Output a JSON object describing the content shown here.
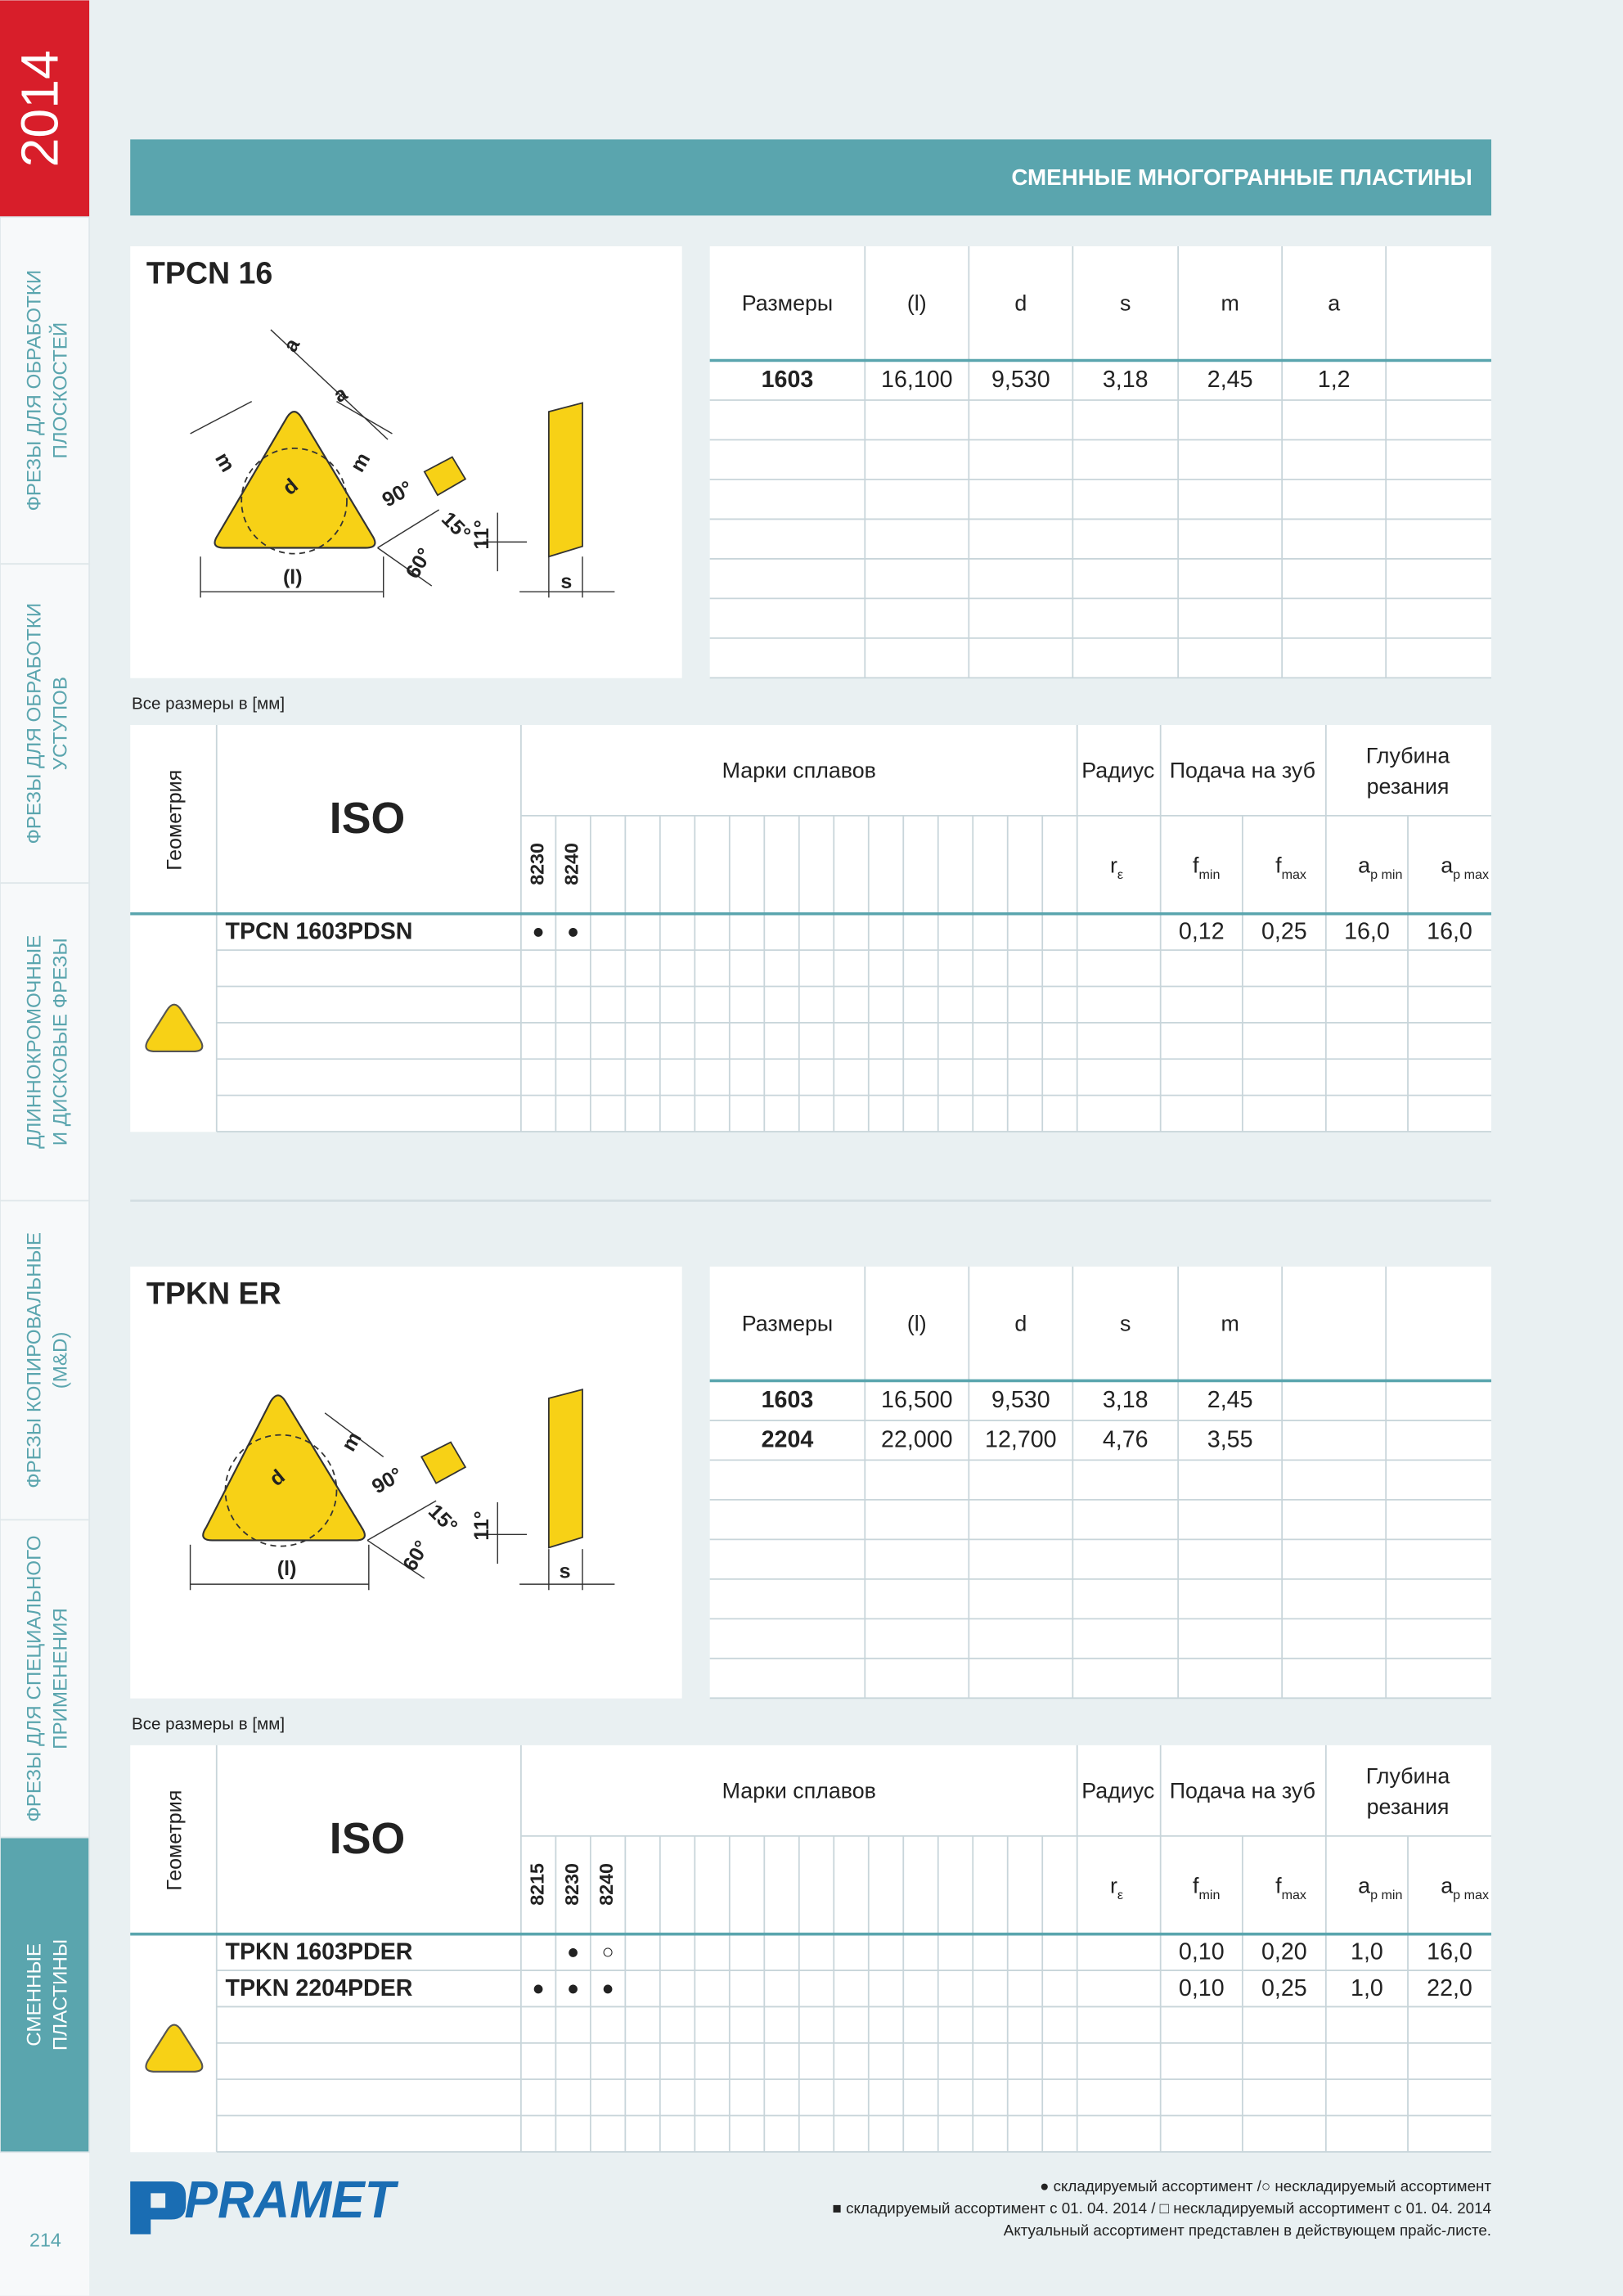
{
  "sidebar": {
    "year": "2014",
    "tabs": [
      [
        "ФРЕЗЫ ДЛЯ ОБРАБОТКИ",
        "ПЛОСКОСТЕЙ"
      ],
      [
        "ФРЕЗЫ ДЛЯ ОБРАБОТКИ",
        "УСТУПОВ"
      ],
      [
        "ДЛИННОКРОМОЧНЫЕ",
        "И ДИСКОВЫЕ ФРЕЗЫ"
      ],
      [
        "ФРЕЗЫ КОПИРОВАЛЬНЫЕ",
        "(M&D)"
      ],
      [
        "ФРЕЗЫ ДЛЯ СПЕЦИАЛЬНОГО",
        "ПРИМЕНЕНИЯ"
      ],
      [
        "СМЕННЫЕ",
        "ПЛАСТИНЫ"
      ]
    ],
    "active_tab": 5,
    "page_number": "214"
  },
  "header": {
    "title": "СМЕННЫЕ МНОГОГРАННЫЕ ПЛАСТИНЫ"
  },
  "sections": [
    {
      "title": "TPCN 16",
      "diagram_labels": [
        "a",
        "a",
        "m",
        "m",
        "d",
        "90°",
        "15°",
        "60°",
        "11°",
        "(l)",
        "s"
      ],
      "dimensions": {
        "columns": [
          "Размеры",
          "(l)",
          "d",
          "s",
          "m",
          "a"
        ],
        "rows": [
          [
            "1603",
            "16,100",
            "9,530",
            "3,18",
            "2,45",
            "1,2"
          ]
        ]
      },
      "note": "Все размеры в [мм]",
      "grades_table": {
        "geometry_header": "Геометрия",
        "iso_header": "ISO",
        "grades_header": "Марки сплавов",
        "radius_header": "Радиус",
        "feed_header": "Подача на зуб",
        "depth_header": [
          "Глубина",
          "резания"
        ],
        "grades": [
          "8230",
          "8240"
        ],
        "subheaders": [
          {
            "main": "r",
            "sub": "ε"
          },
          {
            "main": "f",
            "sub": "min"
          },
          {
            "main": "f",
            "sub": "max"
          },
          {
            "main": "a",
            "sub": "p min"
          },
          {
            "main": "a",
            "sub": "p max"
          }
        ],
        "rows": [
          {
            "code": "TPCN 1603PDSN",
            "marks": [
              "●",
              "●"
            ],
            "values": [
              null,
              "0,12",
              "0,25",
              "16,0",
              "16,0"
            ]
          }
        ]
      }
    },
    {
      "title": "TPKN ER",
      "diagram_labels": [
        "m",
        "d",
        "90°",
        "15°",
        "60°",
        "11°",
        "(l)",
        "s"
      ],
      "dimensions": {
        "columns": [
          "Размеры",
          "(l)",
          "d",
          "s",
          "m"
        ],
        "rows": [
          [
            "1603",
            "16,500",
            "9,530",
            "3,18",
            "2,45"
          ],
          [
            "2204",
            "22,000",
            "12,700",
            "4,76",
            "3,55"
          ]
        ]
      },
      "note": "Все размеры в [мм]",
      "grades_table": {
        "geometry_header": "Геометрия",
        "iso_header": "ISO",
        "grades_header": "Марки сплавов",
        "radius_header": "Радиус",
        "feed_header": "Подача на зуб",
        "depth_header": [
          "Глубина",
          "резания"
        ],
        "grades": [
          "8215",
          "8230",
          "8240"
        ],
        "subheaders": [
          {
            "main": "r",
            "sub": "ε"
          },
          {
            "main": "f",
            "sub": "min"
          },
          {
            "main": "f",
            "sub": "max"
          },
          {
            "main": "a",
            "sub": "p min"
          },
          {
            "main": "a",
            "sub": "p max"
          }
        ],
        "rows": [
          {
            "code": "TPKN 1603PDER",
            "marks": [
              null,
              "●",
              "○"
            ],
            "values": [
              null,
              "0,10",
              "0,20",
              "1,0",
              "16,0"
            ]
          },
          {
            "code": "TPKN 2204PDER",
            "marks": [
              "●",
              "●",
              "●"
            ],
            "values": [
              null,
              "0,10",
              "0,25",
              "1,0",
              "22,0"
            ]
          }
        ]
      }
    }
  ],
  "footer": {
    "logo": "PRAMET",
    "legend": [
      "● складируемый ассортимент /○ нескладируемый ассортимент",
      "■  складируемый ассортимент с 01. 04. 2014 / □ нескладируемый ассортимент с 01. 04. 2014",
      "Актуальный ассортимент представлен в действующем прайс-листе."
    ]
  }
}
